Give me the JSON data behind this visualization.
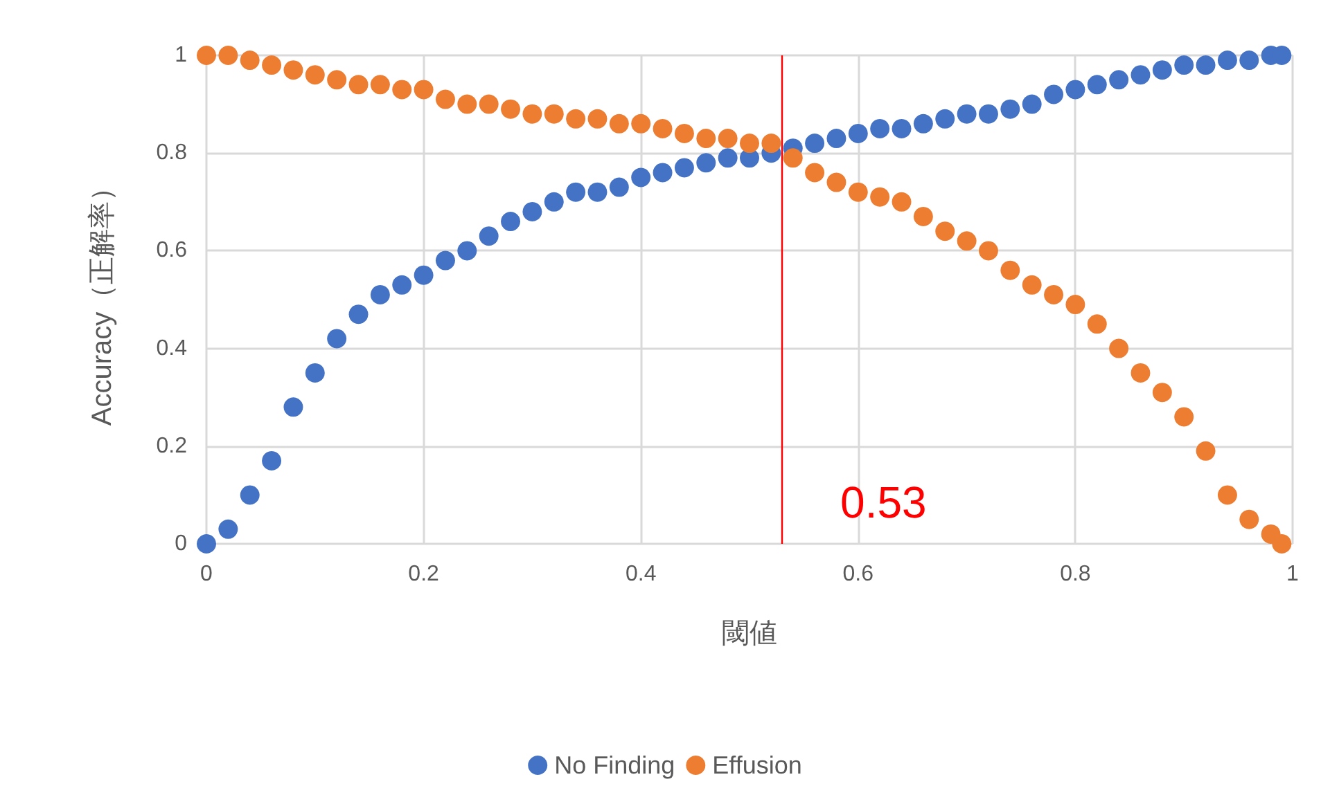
{
  "chart_data": {
    "type": "scatter",
    "xlabel": "閾値",
    "ylabel": "Accuracy（正解率）",
    "x": [
      0,
      0.02,
      0.04,
      0.06,
      0.08,
      0.1,
      0.12,
      0.14,
      0.16,
      0.18,
      0.2,
      0.22,
      0.24,
      0.26,
      0.28,
      0.3,
      0.32,
      0.34,
      0.36,
      0.38,
      0.4,
      0.42,
      0.44,
      0.46,
      0.48,
      0.5,
      0.52,
      0.54,
      0.56,
      0.58,
      0.6,
      0.62,
      0.64,
      0.66,
      0.68,
      0.7,
      0.72,
      0.74,
      0.76,
      0.78,
      0.8,
      0.82,
      0.84,
      0.86,
      0.88,
      0.9,
      0.92,
      0.94,
      0.96,
      0.98,
      0.99
    ],
    "series": [
      {
        "name": "No Finding",
        "color": "#4472c4",
        "values": [
          0,
          0.03,
          0.1,
          0.17,
          0.28,
          0.35,
          0.42,
          0.47,
          0.51,
          0.53,
          0.55,
          0.58,
          0.6,
          0.63,
          0.66,
          0.68,
          0.7,
          0.72,
          0.72,
          0.73,
          0.75,
          0.76,
          0.77,
          0.78,
          0.79,
          0.79,
          0.8,
          0.81,
          0.82,
          0.83,
          0.84,
          0.85,
          0.85,
          0.86,
          0.87,
          0.88,
          0.88,
          0.89,
          0.9,
          0.92,
          0.93,
          0.94,
          0.95,
          0.96,
          0.97,
          0.98,
          0.98,
          0.99,
          0.99,
          1,
          1
        ]
      },
      {
        "name": "Effusion",
        "color": "#ed7d31",
        "values": [
          1,
          1,
          0.99,
          0.98,
          0.97,
          0.96,
          0.95,
          0.94,
          0.94,
          0.93,
          0.93,
          0.91,
          0.9,
          0.9,
          0.89,
          0.88,
          0.88,
          0.87,
          0.87,
          0.86,
          0.86,
          0.85,
          0.84,
          0.83,
          0.83,
          0.82,
          0.82,
          0.79,
          0.76,
          0.74,
          0.72,
          0.71,
          0.7,
          0.67,
          0.64,
          0.62,
          0.6,
          0.56,
          0.53,
          0.51,
          0.49,
          0.45,
          0.4,
          0.35,
          0.31,
          0.26,
          0.19,
          0.1,
          0.05,
          0.02,
          0
        ]
      }
    ],
    "xlim": [
      0,
      1
    ],
    "xticks": [
      0,
      0.2,
      0.4,
      0.6,
      0.8,
      1
    ],
    "ylim": [
      0,
      1
    ],
    "yticks": [
      0,
      0.2,
      0.4,
      0.6,
      0.8,
      1
    ],
    "ref_lines": [
      {
        "axis": "x",
        "value": 0.53,
        "label": "0.53",
        "color": "#ff0000"
      }
    ],
    "grid": true,
    "legend": "bottom",
    "marker": "circle"
  }
}
